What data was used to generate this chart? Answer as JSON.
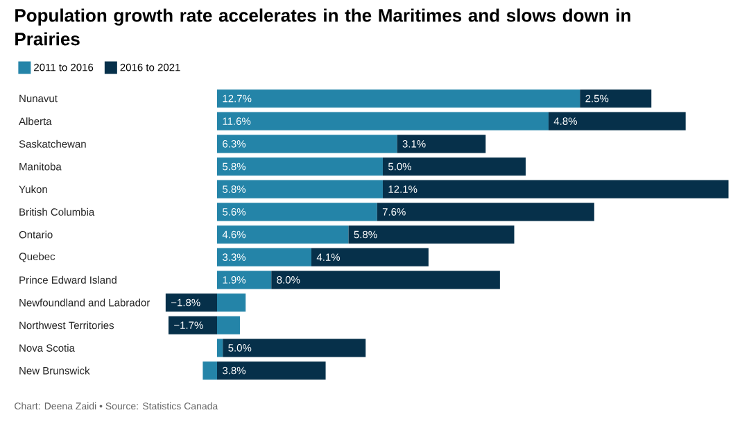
{
  "chart_data": {
    "type": "bar",
    "orientation": "horizontal",
    "stacked": true,
    "title": "Population growth rate accelerates in the Maritimes and slows down in Prairies",
    "categories": [
      "Nunavut",
      "Alberta",
      "Saskatchewan",
      "Manitoba",
      "Yukon",
      "British Columbia",
      "Ontario",
      "Quebec",
      "Prince Edward Island",
      "Newfoundland and Labrador",
      "Northwest Territories",
      "Nova Scotia",
      "New Brunswick"
    ],
    "series": [
      {
        "name": "2011 to 2016",
        "color": "#2484a8",
        "values": [
          12.7,
          11.6,
          6.3,
          5.8,
          5.8,
          5.6,
          4.6,
          3.3,
          1.9,
          1.0,
          0.8,
          0.2,
          -0.5
        ],
        "value_labels": [
          "12.7%",
          "11.6%",
          "6.3%",
          "5.8%",
          "5.8%",
          "5.6%",
          "4.6%",
          "3.3%",
          "1.9%",
          null,
          null,
          null,
          null
        ]
      },
      {
        "name": "2016 to 2021",
        "color": "#06304a",
        "values": [
          2.5,
          4.8,
          3.1,
          5.0,
          12.1,
          7.6,
          5.8,
          4.1,
          8.0,
          -1.8,
          -1.7,
          5.0,
          3.8
        ],
        "value_labels": [
          "2.5%",
          "4.8%",
          "3.1%",
          "5.0%",
          "12.1%",
          "7.6%",
          "5.8%",
          "4.1%",
          "8.0%",
          "−1.8%",
          "−1.7%",
          "5.0%",
          "3.8%"
        ]
      }
    ],
    "legend": "top left",
    "annotations": [
      "Chart: Deena Zaidi • Source: Statistics Canada"
    ]
  }
}
